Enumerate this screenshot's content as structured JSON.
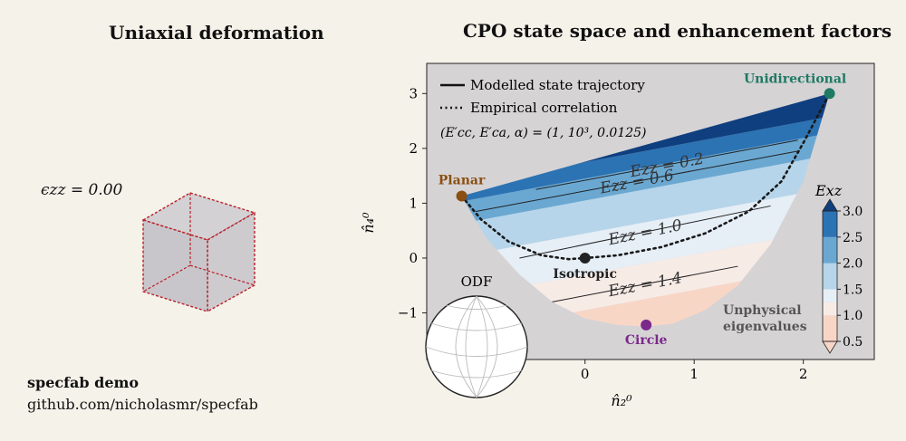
{
  "left_panel": {
    "title": "Uniaxial deformation",
    "strain_label": "ϵzz = 0.00",
    "demo_title": "specfab demo",
    "demo_url": "github.com/nicholasmr/specfab"
  },
  "colors": {
    "background": "#f5f2ea",
    "plot_bg": "#d6d3d5",
    "planar": "#8b4f12",
    "isotropic": "#222222",
    "unidirectional": "#1f7a63",
    "circle": "#7a2a8a",
    "cube_edge": "#b8202a"
  },
  "chart_data": {
    "type": "area",
    "title": "CPO state space and enhancement factors",
    "xlabel": "n̂₂⁰",
    "ylabel": "n̂₄⁰",
    "xlim": [
      -1.45,
      2.65
    ],
    "ylim": [
      -1.85,
      3.55
    ],
    "x_ticks": [
      0,
      1,
      2
    ],
    "y_ticks": [
      -1,
      0,
      1,
      2,
      3
    ],
    "grid": false,
    "legend_position": "top-left",
    "legend": [
      "Modelled state trajectory",
      "Empirical correlation"
    ],
    "parameters_text": "(E′cc, E′ca, α) = (1, 10³, 0.0125)",
    "colorbar": {
      "label": "Exz",
      "ticks": [
        0.5,
        1.0,
        1.5,
        2.0,
        2.5,
        3.0
      ],
      "colors": [
        "#f8d6c6",
        "#f7ebe6",
        "#e6eef6",
        "#b6d5ea",
        "#6aa8d2",
        "#2c73b3",
        "#0f3f7f"
      ]
    },
    "contours": [
      {
        "label": "Ezz = 0.2",
        "level": 0.2,
        "x": [
          -0.45,
          1.95
        ],
        "y": [
          1.25,
          2.15
        ]
      },
      {
        "label": "Ezz = 0.6",
        "level": 0.6,
        "x": [
          -1.0,
          1.95
        ],
        "y": [
          0.85,
          1.95
        ]
      },
      {
        "label": "Ezz = 1.0",
        "level": 1.0,
        "x": [
          -0.6,
          1.7
        ],
        "y": [
          0.0,
          0.95
        ]
      },
      {
        "label": "Ezz = 1.4",
        "level": 1.4,
        "x": [
          -0.3,
          1.4
        ],
        "y": [
          -0.8,
          -0.15
        ]
      }
    ],
    "boundary_lower": {
      "x": [
        -1.13,
        -0.9,
        -0.6,
        -0.3,
        0.0,
        0.3,
        0.55,
        0.8,
        1.1,
        1.4,
        1.7,
        2.0,
        2.24
      ],
      "y": [
        1.13,
        0.35,
        -0.3,
        -0.8,
        -1.1,
        -1.22,
        -1.25,
        -1.2,
        -0.95,
        -0.5,
        0.25,
        1.4,
        3.0
      ]
    },
    "boundary_upper": {
      "x": [
        -1.13,
        2.24
      ],
      "y": [
        1.13,
        3.0
      ]
    },
    "empirical_correlation": {
      "x": [
        -1.13,
        -0.95,
        -0.7,
        -0.4,
        -0.15,
        0.0,
        0.3,
        0.7,
        1.1,
        1.5,
        1.8,
        2.0,
        2.24
      ],
      "y": [
        1.13,
        0.7,
        0.3,
        0.05,
        -0.02,
        0.0,
        0.05,
        0.2,
        0.45,
        0.85,
        1.4,
        2.1,
        3.0
      ]
    },
    "points": [
      {
        "name": "Planar",
        "x": -1.13,
        "y": 1.13,
        "color": "#8b4f12"
      },
      {
        "name": "Isotropic",
        "x": 0.0,
        "y": 0.0,
        "color": "#222222"
      },
      {
        "name": "Unidirectional",
        "x": 2.24,
        "y": 3.0,
        "color": "#1f7a63"
      },
      {
        "name": "Circle",
        "x": 0.56,
        "y": -1.22,
        "color": "#7a2a8a"
      }
    ],
    "annotations": [
      "Unphysical",
      "eigenvalues",
      "ODF"
    ]
  }
}
